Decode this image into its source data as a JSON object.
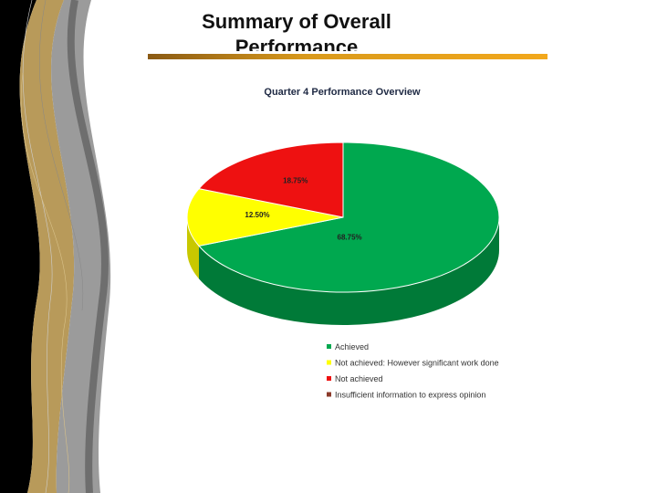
{
  "slide": {
    "title": "Summary of Overall Performance"
  },
  "chart_data": {
    "type": "pie",
    "title": "Quarter 4 Performance Overview",
    "slices": [
      {
        "label": "Achieved",
        "value": 68.75,
        "value_label": "68.75%",
        "color": "#00a84f",
        "side_color": "#007a38"
      },
      {
        "label": "Not achieved: However significant work done",
        "value": 12.5,
        "value_label": "12.50%",
        "color": "#ffff00",
        "side_color": "#c8c800"
      },
      {
        "label": "Not achieved",
        "value": 18.75,
        "value_label": "18.75%",
        "color": "#ee1111",
        "side_color": "#a00c0c"
      },
      {
        "label": "Insufficient information to express opinion",
        "value": 0,
        "value_label": "",
        "color": "#8b3a2a",
        "side_color": "#5c2418"
      }
    ],
    "legend_placement": "bottom"
  }
}
